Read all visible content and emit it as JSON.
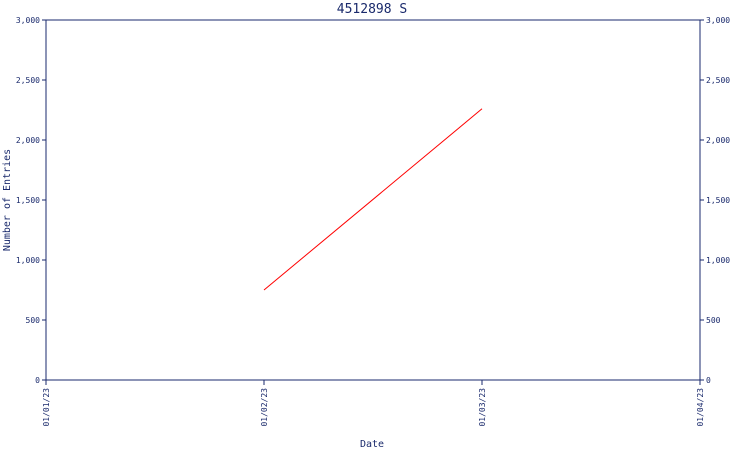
{
  "chart_data": {
    "type": "line",
    "title": "4512898 S",
    "xlabel": "Date",
    "ylabel": "Number of Entries",
    "x_ticks": [
      "01/01/23",
      "01/02/23",
      "01/03/23",
      "01/04/23"
    ],
    "ylim": [
      0,
      3000
    ],
    "y_ticks": [
      0,
      500,
      1000,
      1500,
      2000,
      2500,
      3000
    ],
    "y_tick_labels": [
      "0",
      "500",
      "1,000",
      "1,500",
      "2,000",
      "2,500",
      "3,000"
    ],
    "grid": false,
    "right_axis": true,
    "series": [
      {
        "color": "#ff0000",
        "points": [
          {
            "x": "01/02/23",
            "y": 750
          },
          {
            "x": "01/03/23",
            "y": 2260
          }
        ]
      }
    ]
  },
  "colors": {
    "axis": "#1a2a6c",
    "series": "#ff0000",
    "background": "#ffffff"
  }
}
